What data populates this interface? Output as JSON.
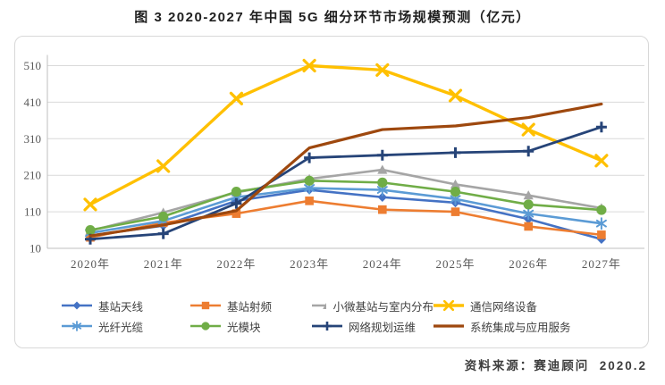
{
  "title": "图 3 2020-2027 年中国 5G 细分环节市场规模预测（亿元）",
  "source": "资料来源：赛迪顾问  2020.2",
  "chart_data": {
    "type": "line",
    "title": "图 3 2020-2027 年中国 5G 细分环节市场规模预测（亿元）",
    "xlabel": "",
    "ylabel": "",
    "categories": [
      "2020年",
      "2021年",
      "2022年",
      "2023年",
      "2024年",
      "2025年",
      "2026年",
      "2027年"
    ],
    "y_ticks": [
      10,
      110,
      210,
      310,
      410,
      510
    ],
    "ylim": [
      10,
      560
    ],
    "grid": true,
    "legend_position": "bottom",
    "series": [
      {
        "name": "基站天线",
        "color": "#4472C4",
        "marker": "diamond",
        "values": [
          45,
          72,
          140,
          170,
          150,
          135,
          90,
          35
        ]
      },
      {
        "name": "基站射频",
        "color": "#ED7D31",
        "marker": "square",
        "values": [
          40,
          80,
          105,
          140,
          116,
          110,
          70,
          47
        ]
      },
      {
        "name": "小微基站与室内分布",
        "color": "#A5A5A5",
        "marker": "triangle",
        "values": [
          58,
          108,
          163,
          200,
          225,
          185,
          155,
          120
        ]
      },
      {
        "name": "通信网络设备",
        "color": "#FFC000",
        "marker": "x",
        "values": [
          130,
          235,
          420,
          510,
          498,
          428,
          335,
          250
        ]
      },
      {
        "name": "光纤光缆",
        "color": "#5B9BD5",
        "marker": "asterisk",
        "values": [
          52,
          85,
          150,
          175,
          170,
          145,
          105,
          78
        ]
      },
      {
        "name": "光模块",
        "color": "#70AD47",
        "marker": "circle",
        "values": [
          60,
          97,
          165,
          195,
          190,
          165,
          130,
          115
        ]
      },
      {
        "name": "网络规划运维",
        "color": "#264478",
        "marker": "plus",
        "values": [
          35,
          50,
          133,
          258,
          265,
          272,
          276,
          342
        ]
      },
      {
        "name": "系统集成与应用服务",
        "color": "#9E480E",
        "marker": "none",
        "values": [
          44,
          74,
          113,
          285,
          335,
          345,
          368,
          405
        ]
      }
    ],
    "colors": {
      "gridline": "#d9d9d9",
      "axis": "#bfbfbf",
      "tick_text": "#595959"
    }
  }
}
